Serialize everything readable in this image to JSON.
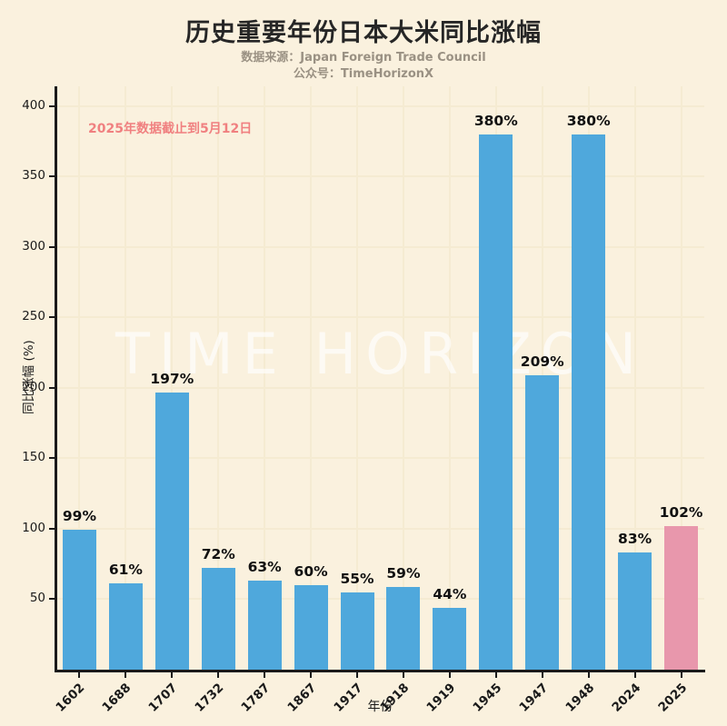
{
  "header": {
    "title": "历史重要年份日本大米同比涨幅",
    "source_line": "数据来源：Japan Foreign Trade Council",
    "account_line": "公众号：TimeHorizonX"
  },
  "annotation": "2025年数据截止到5月12日",
  "watermark": "TIME HORIZON",
  "chart_data": {
    "type": "bar",
    "title": "历史重要年份日本大米同比涨幅",
    "categories": [
      "1602",
      "1688",
      "1707",
      "1732",
      "1787",
      "1867",
      "1917",
      "1918",
      "1919",
      "1945",
      "1947",
      "1948",
      "2024",
      "2025"
    ],
    "values": [
      99,
      61,
      197,
      72,
      63,
      60,
      55,
      59,
      44,
      380,
      209,
      380,
      83,
      102
    ],
    "value_labels": [
      "99%",
      "61%",
      "197%",
      "72%",
      "63%",
      "60%",
      "55%",
      "59%",
      "44%",
      "380%",
      "209%",
      "380%",
      "83%",
      "102%"
    ],
    "xlabel": "年份",
    "ylabel": "同比涨幅 (%)",
    "ylim": [
      0,
      400
    ],
    "yticks": [
      50,
      100,
      150,
      200,
      250,
      300,
      350,
      400
    ],
    "grid": true,
    "legend": "none",
    "bar_color": "#4FA8DC",
    "highlight_color": "#E897AC",
    "highlight_index": 13
  },
  "colors": {
    "background": "#FAF1DE",
    "axis": "#1a1a1a",
    "subtitle": "#9A9183",
    "annotation": "#F08080",
    "gridline": "#F5EBD2"
  }
}
